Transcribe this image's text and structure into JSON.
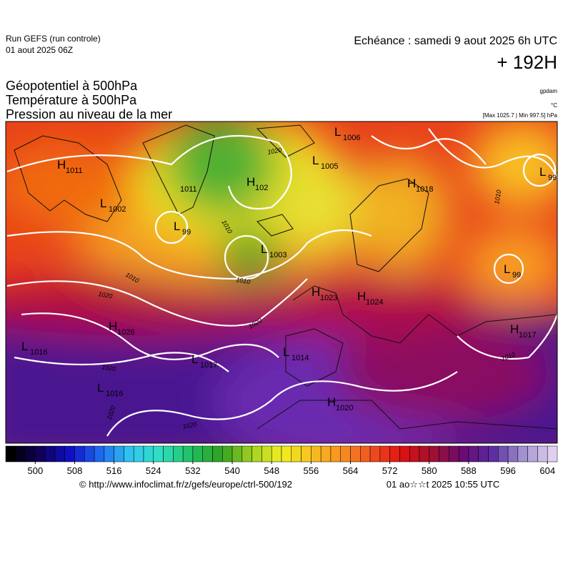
{
  "header": {
    "run": "Run GEFS (run controle)",
    "run_date": "01 aout 2025 06Z",
    "valid": "Echéance : samedi 9 aout 2025 6h UTC",
    "lead": "+ 192H",
    "fields": [
      "Géopotentiel à 500hPa",
      "Température à 500hPa",
      "Pression au niveau de la mer"
    ],
    "units": [
      "gpdam",
      "°C",
      "[Max 1025.7 | Min 997.5] hPa"
    ]
  },
  "pressure_centers": [
    {
      "type": "H",
      "value": "1011"
    },
    {
      "type": "L",
      "value": "1002"
    },
    {
      "type": "",
      "value": "1011"
    },
    {
      "type": "L",
      "value": "99"
    },
    {
      "type": "H",
      "value": "102"
    },
    {
      "type": "L",
      "value": "1005"
    },
    {
      "type": "L",
      "value": "1006"
    },
    {
      "type": "H",
      "value": "1018"
    },
    {
      "type": "L",
      "value": "99"
    },
    {
      "type": "L",
      "value": "1003"
    },
    {
      "type": "L",
      "value": "99"
    },
    {
      "type": "H",
      "value": "1023"
    },
    {
      "type": "H",
      "value": "1024"
    },
    {
      "type": "H",
      "value": "1026"
    },
    {
      "type": "L",
      "value": "1016"
    },
    {
      "type": "L",
      "value": "1017"
    },
    {
      "type": "L",
      "value": "1014"
    },
    {
      "type": "L",
      "value": "1016"
    },
    {
      "type": "H",
      "value": "1020"
    },
    {
      "type": "H",
      "value": "1017"
    }
  ],
  "isobar_labels": [
    "1020",
    "1010",
    "1010",
    "1020",
    "1020",
    "1020",
    "1020",
    "1020",
    "1010",
    "1010",
    "1010"
  ],
  "colorbar": {
    "range": [
      494,
      606
    ],
    "ticks": [
      500,
      508,
      516,
      524,
      532,
      540,
      548,
      556,
      564,
      572,
      580,
      588,
      596,
      604
    ]
  },
  "footer": {
    "source": "© http://www.infoclimat.fr/z/gefs/europe/ctrl-500/192",
    "generated": "01 ao☆☆t 2025 10:55 UTC"
  }
}
